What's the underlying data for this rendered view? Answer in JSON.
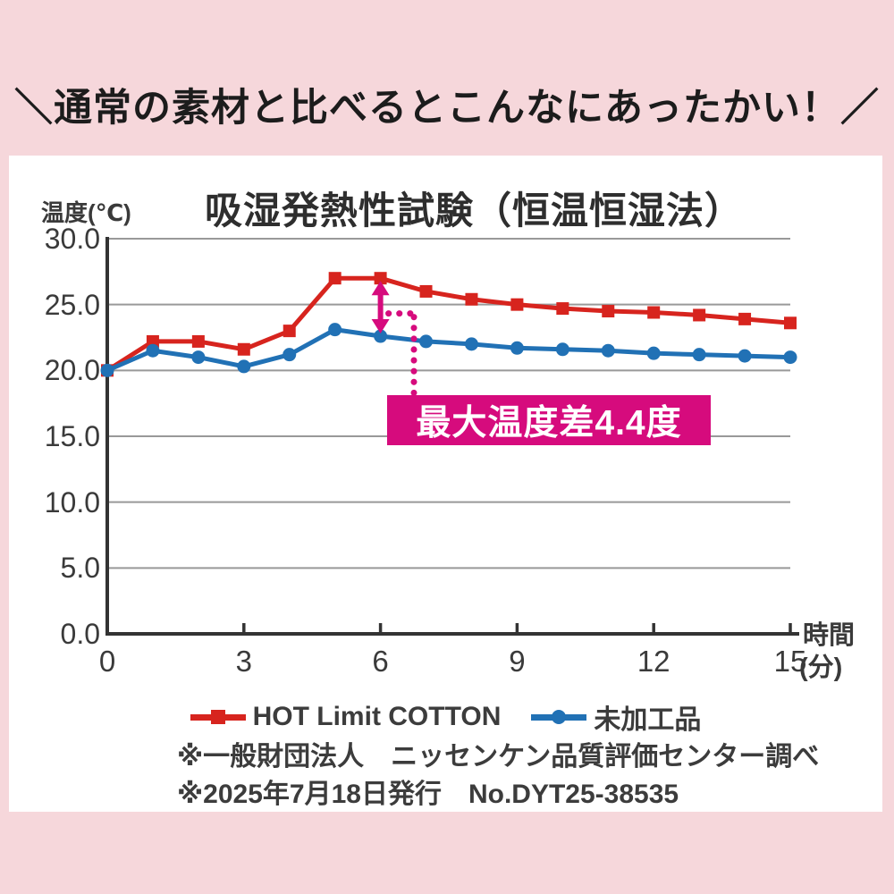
{
  "header": {
    "title": "＼通常の素材と比べるとこんなにあったかい！／"
  },
  "chart_data": {
    "type": "line",
    "title": "吸湿発熱性試験（恒温恒湿法）",
    "y_axis_label": "温度(℃)",
    "x_axis_label_top": "時間",
    "x_axis_label_bottom": "(分)",
    "xlim": [
      0,
      15
    ],
    "ylim": [
      0,
      30
    ],
    "x": [
      0,
      1,
      2,
      3,
      4,
      5,
      6,
      7,
      8,
      9,
      10,
      11,
      12,
      13,
      14,
      15
    ],
    "x_ticks": [
      0,
      3,
      6,
      9,
      12,
      15
    ],
    "y_ticks": [
      "30.0",
      "25.0",
      "20.0",
      "15.0",
      "10.0",
      "5.0",
      "0.0"
    ],
    "grid": "horizontal",
    "series": [
      {
        "name": "HOT Limit COTTON",
        "marker": "square",
        "color": "#d7241e",
        "values": [
          20.0,
          22.2,
          22.2,
          21.6,
          23.0,
          27.0,
          27.0,
          26.0,
          25.4,
          25.0,
          24.7,
          24.5,
          24.4,
          24.2,
          23.9,
          23.6
        ]
      },
      {
        "name": "未加工品",
        "marker": "circle",
        "color": "#2171b5",
        "values": [
          20.0,
          21.5,
          21.0,
          20.3,
          21.2,
          23.1,
          22.6,
          22.2,
          22.0,
          21.7,
          21.6,
          21.5,
          21.3,
          21.2,
          21.1,
          21.0
        ]
      }
    ],
    "annotation": {
      "label": "最大温度差4.4度",
      "at_x": 6,
      "color": "#d60b7d",
      "text_color": "#ffffff"
    },
    "colors": {
      "grid": "#999999",
      "axis": "#333333",
      "background": "#ffffff",
      "page_background": "#f6d7db"
    },
    "legend_position": "bottom"
  },
  "footer": {
    "line1": "※一般財団法人　ニッセンケン品質評価センター調べ",
    "line2": "※2025年7月18日発行　No.DYT25-38535"
  }
}
